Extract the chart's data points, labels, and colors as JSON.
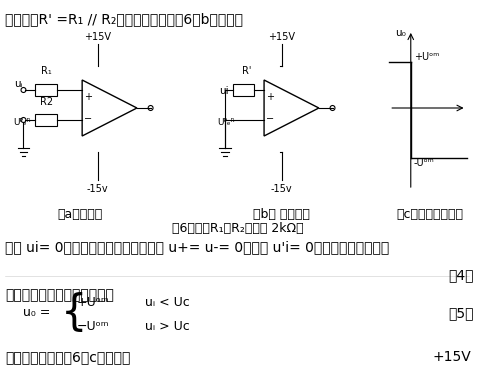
{
  "bg_color": "#ffffff",
  "title_line": "和内阻：R' =R₁ // R₂，其等效电路如图6（b）所示。",
  "caption_a": "（a）电路图",
  "caption_b": "（b） 等效电路",
  "caption_c": "（c）电压传输特性",
  "fig6_caption": "图6（其中R₁、R₂分别取 2kΩ）",
  "line1": "由于 ui= 0，根据输出翻转的临界条件 u+= u-= 0，故由 u'i= 0，可求得比较电平：",
  "eq4_label": "（4）",
  "intro2": "因此，比较器的输出电压为：",
  "eq_lhs": "u₀ =",
  "eq5_label": "（5）",
  "bottom_line_left": "电压传输特性如图6（c）所示。",
  "bottom_line_right": "+15V",
  "font_size_main": 10,
  "font_size_caption": 9,
  "font_family": "SimHei"
}
